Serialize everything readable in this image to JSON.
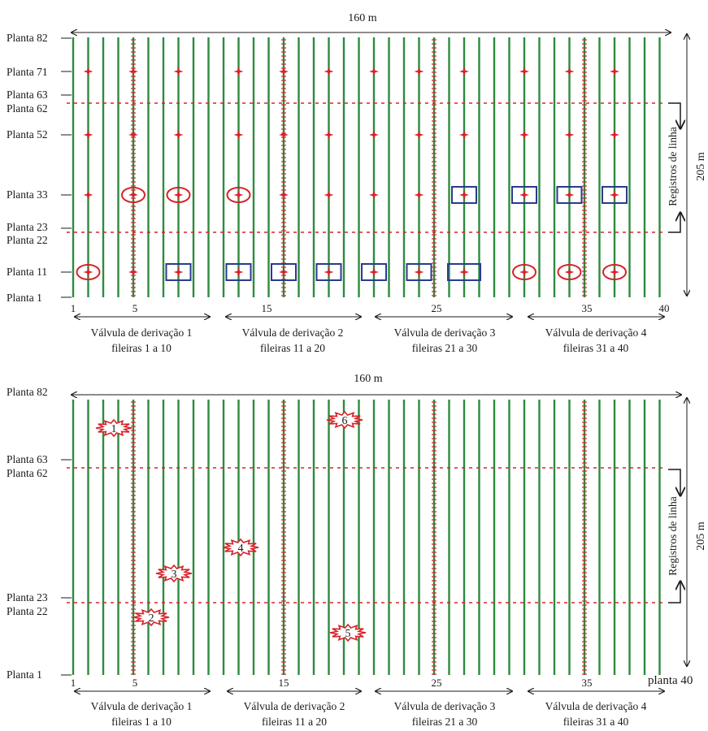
{
  "width_label": "160 m",
  "height_label": "205 m",
  "registers_label": "Registros de linha",
  "plant_labels": {
    "p82": "Planta 82",
    "p71": "Planta 71",
    "p63": "Planta 63",
    "p62": "Planta 62",
    "p52": "Planta 52",
    "p33": "Planta 33",
    "p23": "Planta 23",
    "p22": "Planta 22",
    "p11": "Planta 11",
    "p1": "Planta 1"
  },
  "row_numbers": [
    "1",
    "5",
    "15",
    "25",
    "35",
    "40"
  ],
  "last_row_label_bottom": "planta 40",
  "valves": [
    {
      "name": "Válvula de derivação 1",
      "rows": "fileiras 1 a 10"
    },
    {
      "name": "Válvula de derivação 2",
      "rows": "fileiras 11 a 20"
    },
    {
      "name": "Válvula de derivação 3",
      "rows": "fileiras 21 a 30"
    },
    {
      "name": "Válvula de derivação 4",
      "rows": "fileiras 31 a 40"
    }
  ],
  "leaks": [
    "1",
    "2",
    "3",
    "4",
    "5",
    "6"
  ],
  "colors": {
    "row_line": "#2e8b3e",
    "marker": "#d8232a",
    "box": "#2a3a8f",
    "arrow": "#1a1a1a"
  }
}
